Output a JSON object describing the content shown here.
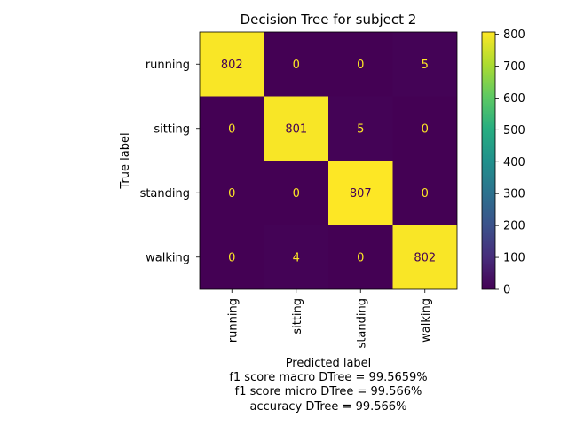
{
  "chart_data": {
    "type": "heatmap",
    "title": "Decision Tree for subject 2",
    "xlabel": "Predicted label",
    "ylabel": "True label",
    "row_labels": [
      "running",
      "sitting",
      "standing",
      "walking"
    ],
    "col_labels": [
      "running",
      "sitting",
      "standing",
      "walking"
    ],
    "values": [
      [
        802,
        0,
        0,
        5
      ],
      [
        0,
        801,
        5,
        0
      ],
      [
        0,
        0,
        807,
        0
      ],
      [
        0,
        4,
        0,
        802
      ]
    ],
    "colormap": "viridis",
    "colorbar": {
      "range": [
        0,
        807
      ],
      "ticks": [
        0,
        100,
        200,
        300,
        400,
        500,
        600,
        700,
        800
      ]
    },
    "cell_text_colors": {
      "low": "#fde725",
      "high": "#440154"
    },
    "metrics": [
      "f1 score macro DTree = 99.5659%",
      "f1 score micro DTree = 99.566%",
      "accuracy DTree = 99.566%"
    ]
  }
}
